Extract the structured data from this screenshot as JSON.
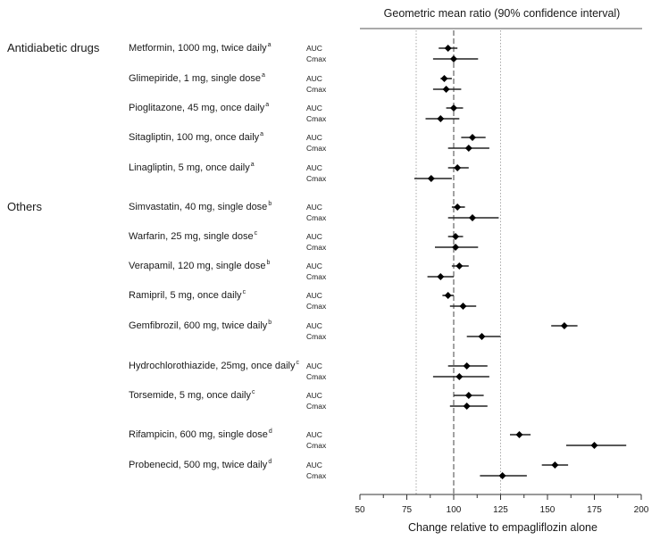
{
  "chart_data": {
    "type": "forest",
    "title": "Geometric mean ratio (90% confidence interval)",
    "xlabel": "Change relative to empagliflozin alone",
    "xlim": [
      50,
      200
    ],
    "xticks": [
      50,
      75,
      100,
      125,
      150,
      175,
      200
    ],
    "reference_line": 100,
    "bioequivalence_bounds": [
      80,
      125
    ],
    "metrics": [
      "AUC",
      "Cmax"
    ],
    "groups": [
      {
        "label": "Antidiabetic drugs",
        "drugs": [
          {
            "name": "Metformin, 1000 mg, twice daily",
            "sup": "a",
            "AUC": {
              "gmr": 97,
              "lo": 92,
              "hi": 102
            },
            "Cmax": {
              "gmr": 100,
              "lo": 89,
              "hi": 113
            }
          },
          {
            "name": "Glimepiride, 1 mg, single dose",
            "sup": "a",
            "AUC": {
              "gmr": 95,
              "lo": 93,
              "hi": 99
            },
            "Cmax": {
              "gmr": 96,
              "lo": 89,
              "hi": 104
            }
          },
          {
            "name": "Pioglitazone, 45 mg, once daily",
            "sup": "a",
            "AUC": {
              "gmr": 100,
              "lo": 96,
              "hi": 105
            },
            "Cmax": {
              "gmr": 93,
              "lo": 85,
              "hi": 103
            }
          },
          {
            "name": "Sitagliptin, 100 mg, once daily",
            "sup": "a",
            "AUC": {
              "gmr": 110,
              "lo": 104,
              "hi": 117
            },
            "Cmax": {
              "gmr": 108,
              "lo": 97,
              "hi": 119
            }
          },
          {
            "name": "Linagliptin, 5 mg, once daily",
            "sup": "a",
            "AUC": {
              "gmr": 102,
              "lo": 97,
              "hi": 108
            },
            "Cmax": {
              "gmr": 88,
              "lo": 79,
              "hi": 99
            }
          }
        ]
      },
      {
        "label": "Others",
        "drugs": [
          {
            "name": "Simvastatin, 40 mg, single dose",
            "sup": "b",
            "AUC": {
              "gmr": 102,
              "lo": 99,
              "hi": 106
            },
            "Cmax": {
              "gmr": 110,
              "lo": 97,
              "hi": 124
            }
          },
          {
            "name": "Warfarin, 25 mg, single dose",
            "sup": "c",
            "AUC": {
              "gmr": 101,
              "lo": 97,
              "hi": 105
            },
            "Cmax": {
              "gmr": 101,
              "lo": 90,
              "hi": 113
            }
          },
          {
            "name": "Verapamil, 120 mg, single dose",
            "sup": "b",
            "AUC": {
              "gmr": 103,
              "lo": 99,
              "hi": 108
            },
            "Cmax": {
              "gmr": 93,
              "lo": 86,
              "hi": 100
            }
          },
          {
            "name": "Ramipril, 5 mg, once daily",
            "sup": "c",
            "AUC": {
              "gmr": 97,
              "lo": 94,
              "hi": 100
            },
            "Cmax": {
              "gmr": 105,
              "lo": 98,
              "hi": 112
            }
          },
          {
            "name": "Gemfibrozil, 600 mg, twice daily",
            "sup": "b",
            "AUC": {
              "gmr": 159,
              "lo": 152,
              "hi": 166
            },
            "Cmax": {
              "gmr": 115,
              "lo": 107,
              "hi": 125
            }
          },
          {
            "name": "Hydrochlorothiazide, 25mg, once daily",
            "sup": "c",
            "AUC": {
              "gmr": 107,
              "lo": 97,
              "hi": 118
            },
            "Cmax": {
              "gmr": 103,
              "lo": 89,
              "hi": 119
            }
          },
          {
            "name": "Torsemide, 5 mg, once daily",
            "sup": "c",
            "AUC": {
              "gmr": 108,
              "lo": 100,
              "hi": 116
            },
            "Cmax": {
              "gmr": 107,
              "lo": 98,
              "hi": 118
            }
          },
          {
            "name": "Rifampicin, 600 mg, single dose",
            "sup": "d",
            "AUC": {
              "gmr": 135,
              "lo": 130,
              "hi": 141
            },
            "Cmax": {
              "gmr": 175,
              "lo": 160,
              "hi": 192
            }
          },
          {
            "name": "Probenecid, 500 mg, twice daily",
            "sup": "d",
            "AUC": {
              "gmr": 154,
              "lo": 147,
              "hi": 161
            },
            "Cmax": {
              "gmr": 126,
              "lo": 114,
              "hi": 139
            }
          }
        ]
      }
    ]
  }
}
